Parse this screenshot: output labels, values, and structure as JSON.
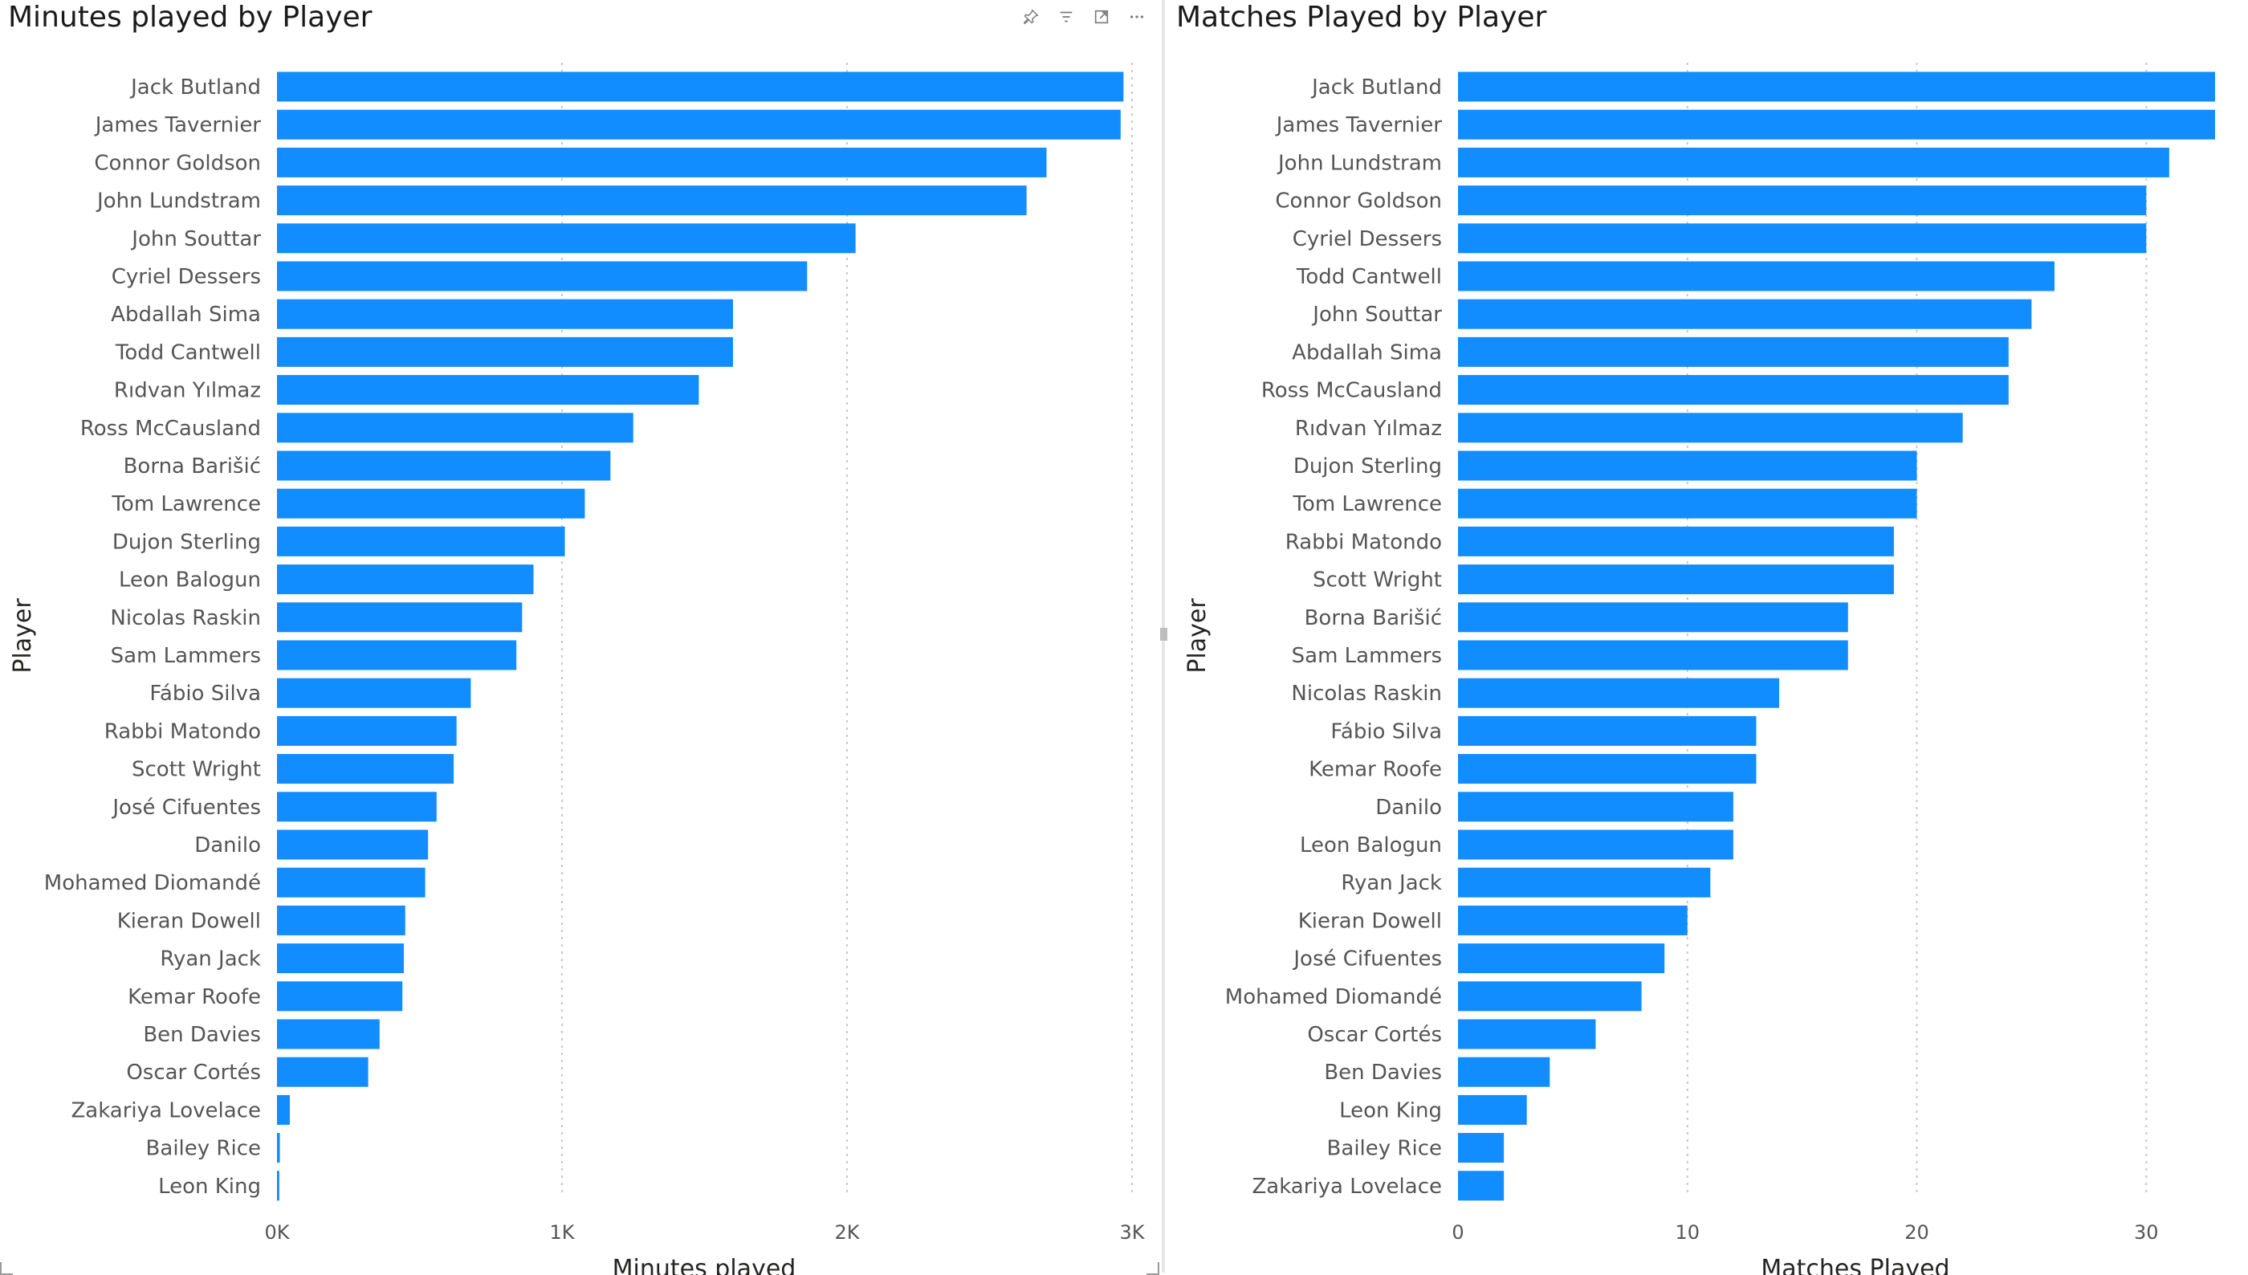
{
  "theme": {
    "bar_color": "#118DFF",
    "gridline_color": "#c8c8c8",
    "text_color": "#555555"
  },
  "visual_header_icons": [
    "pin-icon",
    "filter-icon",
    "focus-mode-icon",
    "more-options-icon"
  ],
  "chart_data": [
    {
      "type": "bar",
      "orientation": "horizontal",
      "title": "Minutes played by Player",
      "xlabel": "Minutes played",
      "ylabel": "Player",
      "xlim": [
        0,
        3000
      ],
      "xticks": [
        0,
        1000,
        2000,
        3000
      ],
      "xtick_labels": [
        "0K",
        "1K",
        "2K",
        "3K"
      ],
      "grid": true,
      "categories": [
        "Jack Butland",
        "James Tavernier",
        "Connor Goldson",
        "John Lundstram",
        "John Souttar",
        "Cyriel Dessers",
        "Abdallah Sima",
        "Todd Cantwell",
        "Rıdvan Yılmaz",
        "Ross McCausland",
        "Borna Barišić",
        "Tom Lawrence",
        "Dujon Sterling",
        "Leon Balogun",
        "Nicolas Raskin",
        "Sam Lammers",
        "Fábio Silva",
        "Rabbi Matondo",
        "Scott Wright",
        "José Cifuentes",
        "Danilo",
        "Mohamed Diomandé",
        "Kieran Dowell",
        "Ryan Jack",
        "Kemar Roofe",
        "Ben Davies",
        "Oscar Cortés",
        "Zakariya Lovelace",
        "Bailey Rice",
        "Leon King"
      ],
      "values": [
        2970,
        2960,
        2700,
        2630,
        2030,
        1860,
        1600,
        1600,
        1480,
        1250,
        1170,
        1080,
        1010,
        900,
        860,
        840,
        680,
        630,
        620,
        560,
        530,
        520,
        450,
        445,
        440,
        360,
        320,
        45,
        10,
        8
      ]
    },
    {
      "type": "bar",
      "orientation": "horizontal",
      "title": "Matches Played by Player",
      "xlabel": "Matches Played",
      "ylabel": "Player",
      "xlim": [
        0,
        33
      ],
      "xticks": [
        0,
        10,
        20,
        30
      ],
      "xtick_labels": [
        "0",
        "10",
        "20",
        "30"
      ],
      "grid": true,
      "categories": [
        "Jack Butland",
        "James Tavernier",
        "John Lundstram",
        "Connor Goldson",
        "Cyriel Dessers",
        "Todd Cantwell",
        "John Souttar",
        "Abdallah Sima",
        "Ross McCausland",
        "Rıdvan Yılmaz",
        "Dujon Sterling",
        "Tom Lawrence",
        "Rabbi Matondo",
        "Scott Wright",
        "Borna Barišić",
        "Sam Lammers",
        "Nicolas Raskin",
        "Fábio Silva",
        "Kemar Roofe",
        "Danilo",
        "Leon Balogun",
        "Ryan Jack",
        "Kieran Dowell",
        "José Cifuentes",
        "Mohamed Diomandé",
        "Oscar Cortés",
        "Ben Davies",
        "Leon King",
        "Bailey Rice",
        "Zakariya Lovelace"
      ],
      "values": [
        33,
        33,
        31,
        30,
        30,
        26,
        25,
        24,
        24,
        22,
        20,
        20,
        19,
        19,
        17,
        17,
        14,
        13,
        13,
        12,
        12,
        11,
        10,
        9,
        8,
        6,
        4,
        3,
        2,
        2
      ]
    }
  ]
}
